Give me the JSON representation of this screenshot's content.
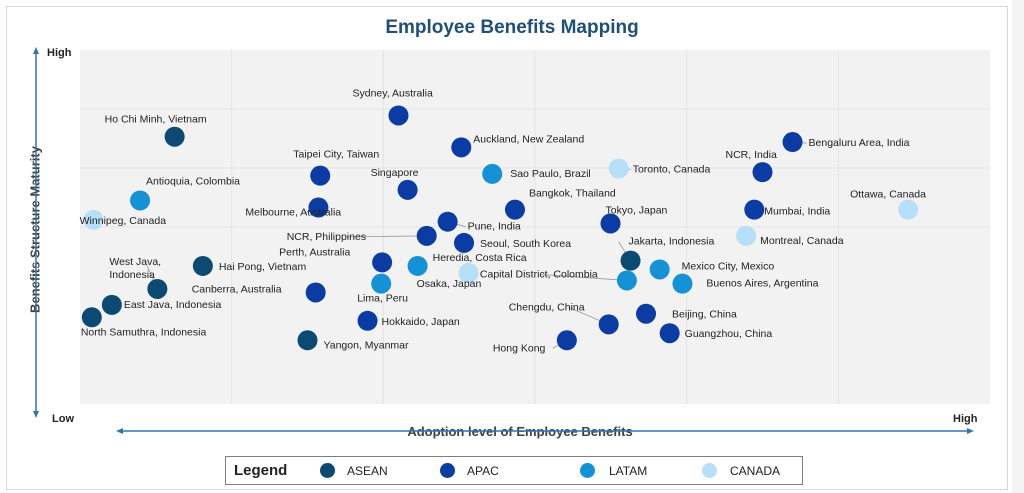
{
  "chart_data": {
    "type": "scatter",
    "title": "Employee Benefits Mapping",
    "xlabel": "Adoption level of Employee Benefits",
    "ylabel": "Benefits Structure Maturity",
    "x_low": "Low",
    "x_high": "High",
    "y_low": "Low",
    "y_high": "High",
    "xlim": [
      0,
      100
    ],
    "ylim": [
      0,
      100
    ],
    "grid": true,
    "legend_title": "Legend",
    "legend_position": "bottom",
    "series": [
      {
        "name": "ASEAN",
        "color": "#0b4a73",
        "points": [
          {
            "label": "Ho Chi Minh, Vietnam",
            "x": 10.4,
            "y": 75.5
          },
          {
            "label": "West Java, Indonesia",
            "x": 8.5,
            "y": 32.5
          },
          {
            "label": "East Java, Indonesia",
            "x": 3.5,
            "y": 28
          },
          {
            "label": "North Samuthra, Indonesia",
            "x": 1.3,
            "y": 24.5
          },
          {
            "label": "Hai Pong, Vietnam",
            "x": 13.5,
            "y": 39
          },
          {
            "label": "Yangon, Myanmar",
            "x": 25,
            "y": 18
          },
          {
            "label": "Jakarta, Indonesia",
            "x": 60.5,
            "y": 40.5
          }
        ]
      },
      {
        "name": "APAC",
        "color": "#0a3ca3",
        "points": [
          {
            "label": "Sydney, Australia",
            "x": 35,
            "y": 81.5
          },
          {
            "label": "Auckland, New Zealand",
            "x": 41.9,
            "y": 72.5
          },
          {
            "label": "Bengaluru Area, India",
            "x": 78.3,
            "y": 74
          },
          {
            "label": "Taipei City, Taiwan",
            "x": 26.4,
            "y": 64.5
          },
          {
            "label": "Singapore",
            "x": 36,
            "y": 60.5
          },
          {
            "label": "NCR, India",
            "x": 75,
            "y": 65.5
          },
          {
            "label": "Melbourne, Australia",
            "x": 26.2,
            "y": 55.5
          },
          {
            "label": "Bangkok, Thailand",
            "x": 47.8,
            "y": 54.9
          },
          {
            "label": "Tokyo, Japan",
            "x": 58.3,
            "y": 51
          },
          {
            "label": "Mumbai, India",
            "x": 74.1,
            "y": 54.9
          },
          {
            "label": "Pune, India",
            "x": 40.4,
            "y": 51.5
          },
          {
            "label": "NCR, Philippines",
            "x": 38.1,
            "y": 47.5
          },
          {
            "label": "Seoul, South Korea",
            "x": 42.2,
            "y": 45.5
          },
          {
            "label": "Perth, Australia",
            "x": 33.2,
            "y": 40
          },
          {
            "label": "Canberra, Australia",
            "x": 25.9,
            "y": 31.5
          },
          {
            "label": "Hokkaido, Japan",
            "x": 31.6,
            "y": 23.5
          },
          {
            "label": "Chengdu, China",
            "x": 58.1,
            "y": 22.5
          },
          {
            "label": "Beijing, China",
            "x": 62.2,
            "y": 25.5
          },
          {
            "label": "Guangzhou, China",
            "x": 64.8,
            "y": 20
          },
          {
            "label": "Hong Kong",
            "x": 53.5,
            "y": 18
          }
        ]
      },
      {
        "name": "LATAM",
        "color": "#1591d6",
        "points": [
          {
            "label": "Sao Paulo, Brazil",
            "x": 45.3,
            "y": 65
          },
          {
            "label": "Antioquia, Colombia",
            "x": 6.6,
            "y": 57.5
          },
          {
            "label": "Heredia, Costa Rica",
            "x": 37.1,
            "y": 39
          },
          {
            "label": "Lima, Peru",
            "x": 33.1,
            "y": 34
          },
          {
            "label": "Capital District, Colombia",
            "x": 60.1,
            "y": 34.9
          },
          {
            "label": "Mexico City, Mexico",
            "x": 63.7,
            "y": 38
          },
          {
            "label": "Buenos Aires, Argentina",
            "x": 66.2,
            "y": 34
          }
        ]
      },
      {
        "name": "CANADA",
        "color": "#b6e0f7",
        "points": [
          {
            "label": "Toronto, Canada",
            "x": 59.2,
            "y": 66.5
          },
          {
            "label": "Winnipeg, Canada",
            "x": 1.5,
            "y": 52
          },
          {
            "label": "Ottawa, Canada",
            "x": 91,
            "y": 54.9
          },
          {
            "label": "Montreal, Canada",
            "x": 73.2,
            "y": 47.5
          },
          {
            "label": "Osaka, Japan",
            "x": 42.7,
            "y": 37
          }
        ]
      }
    ]
  }
}
